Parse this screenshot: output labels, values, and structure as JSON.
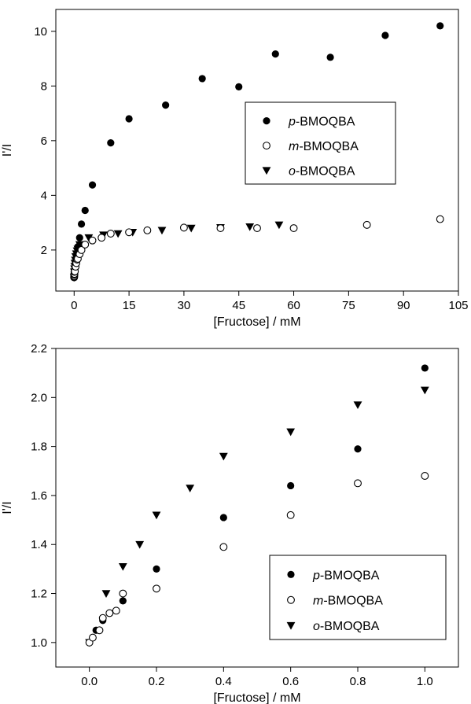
{
  "chart_data": [
    {
      "type": "scatter",
      "xlabel": "[Fructose] / mM",
      "ylabel": "I'/I",
      "xlim": [
        -5,
        105
      ],
      "ylim": [
        0.5,
        10.8
      ],
      "xticks": [
        0,
        15,
        30,
        45,
        60,
        75,
        90,
        105
      ],
      "yticks": [
        2,
        4,
        6,
        8,
        10
      ],
      "tick_format": "int",
      "legend_placement": "center-right",
      "series": [
        {
          "name_prefix": "p",
          "name_suffix": "-BMOQBA",
          "marker": "filled-circle",
          "points": [
            [
              0,
              1.0
            ],
            [
              0.02,
              1.05
            ],
            [
              0.04,
              1.09
            ],
            [
              0.06,
              1.12
            ],
            [
              0.1,
              1.17
            ],
            [
              0.2,
              1.3
            ],
            [
              0.4,
              1.51
            ],
            [
              0.6,
              1.64
            ],
            [
              0.8,
              1.79
            ],
            [
              1,
              2.12
            ],
            [
              1.5,
              2.45
            ],
            [
              2,
              2.95
            ],
            [
              3,
              3.45
            ],
            [
              5,
              4.38
            ],
            [
              10,
              5.92
            ],
            [
              15,
              6.8
            ],
            [
              25,
              7.3
            ],
            [
              35,
              8.27
            ],
            [
              45,
              7.97
            ],
            [
              55,
              9.17
            ],
            [
              70,
              9.05
            ],
            [
              85,
              9.85
            ],
            [
              100,
              10.2
            ]
          ]
        },
        {
          "name_prefix": "m",
          "name_suffix": "-BMOQBA",
          "marker": "open-circle",
          "points": [
            [
              0,
              1.0
            ],
            [
              0.01,
              1.02
            ],
            [
              0.03,
              1.05
            ],
            [
              0.04,
              1.1
            ],
            [
              0.06,
              1.12
            ],
            [
              0.08,
              1.13
            ],
            [
              0.1,
              1.2
            ],
            [
              0.2,
              1.22
            ],
            [
              0.4,
              1.39
            ],
            [
              0.6,
              1.52
            ],
            [
              0.8,
              1.65
            ],
            [
              1,
              1.68
            ],
            [
              1.5,
              1.85
            ],
            [
              2,
              2.0
            ],
            [
              3,
              2.2
            ],
            [
              5,
              2.35
            ],
            [
              7.5,
              2.45
            ],
            [
              10,
              2.6
            ],
            [
              15,
              2.65
            ],
            [
              20,
              2.72
            ],
            [
              30,
              2.82
            ],
            [
              40,
              2.8
            ],
            [
              50,
              2.8
            ],
            [
              60,
              2.8
            ],
            [
              80,
              2.92
            ],
            [
              100,
              3.13
            ]
          ]
        },
        {
          "name_prefix": "o",
          "name_suffix": "-BMOQBA",
          "marker": "filled-triangle-down",
          "points": [
            [
              0,
              1.0
            ],
            [
              0.05,
              1.2
            ],
            [
              0.1,
              1.31
            ],
            [
              0.15,
              1.4
            ],
            [
              0.2,
              1.52
            ],
            [
              0.3,
              1.63
            ],
            [
              0.4,
              1.76
            ],
            [
              0.6,
              1.86
            ],
            [
              0.8,
              1.97
            ],
            [
              1,
              2.03
            ],
            [
              1.5,
              2.2
            ],
            [
              4,
              2.45
            ],
            [
              8,
              2.55
            ],
            [
              12,
              2.6
            ],
            [
              16,
              2.65
            ],
            [
              24,
              2.72
            ],
            [
              32,
              2.8
            ],
            [
              40,
              2.82
            ],
            [
              48,
              2.85
            ],
            [
              56,
              2.92
            ]
          ]
        }
      ]
    },
    {
      "type": "scatter",
      "xlabel": "[Fructose] / mM",
      "ylabel": "I'/I",
      "xlim": [
        -0.1,
        1.1
      ],
      "ylim": [
        0.9,
        2.2
      ],
      "xticks": [
        0.0,
        0.2,
        0.4,
        0.6,
        0.8,
        1.0
      ],
      "yticks": [
        1.0,
        1.2,
        1.4,
        1.6,
        1.8,
        2.0,
        2.2
      ],
      "tick_format": "one-decimal",
      "legend_placement": "bottom-right",
      "series": [
        {
          "name_prefix": "p",
          "name_suffix": "-BMOQBA",
          "marker": "filled-circle",
          "points": [
            [
              0,
              1.0
            ],
            [
              0.02,
              1.05
            ],
            [
              0.04,
              1.09
            ],
            [
              0.06,
              1.12
            ],
            [
              0.1,
              1.17
            ],
            [
              0.2,
              1.3
            ],
            [
              0.4,
              1.51
            ],
            [
              0.6,
              1.64
            ],
            [
              0.8,
              1.79
            ],
            [
              1.0,
              2.12
            ]
          ]
        },
        {
          "name_prefix": "m",
          "name_suffix": "-BMOQBA",
          "marker": "open-circle",
          "points": [
            [
              0,
              1.0
            ],
            [
              0.01,
              1.02
            ],
            [
              0.03,
              1.05
            ],
            [
              0.04,
              1.1
            ],
            [
              0.06,
              1.12
            ],
            [
              0.08,
              1.13
            ],
            [
              0.1,
              1.2
            ],
            [
              0.2,
              1.22
            ],
            [
              0.4,
              1.39
            ],
            [
              0.6,
              1.52
            ],
            [
              0.8,
              1.65
            ],
            [
              1.0,
              1.68
            ]
          ]
        },
        {
          "name_prefix": "o",
          "name_suffix": "-BMOQBA",
          "marker": "filled-triangle-down",
          "points": [
            [
              0,
              1.0
            ],
            [
              0.05,
              1.2
            ],
            [
              0.1,
              1.31
            ],
            [
              0.15,
              1.4
            ],
            [
              0.2,
              1.52
            ],
            [
              0.3,
              1.63
            ],
            [
              0.4,
              1.76
            ],
            [
              0.6,
              1.86
            ],
            [
              0.8,
              1.97
            ],
            [
              1.0,
              2.03
            ]
          ]
        }
      ]
    }
  ]
}
